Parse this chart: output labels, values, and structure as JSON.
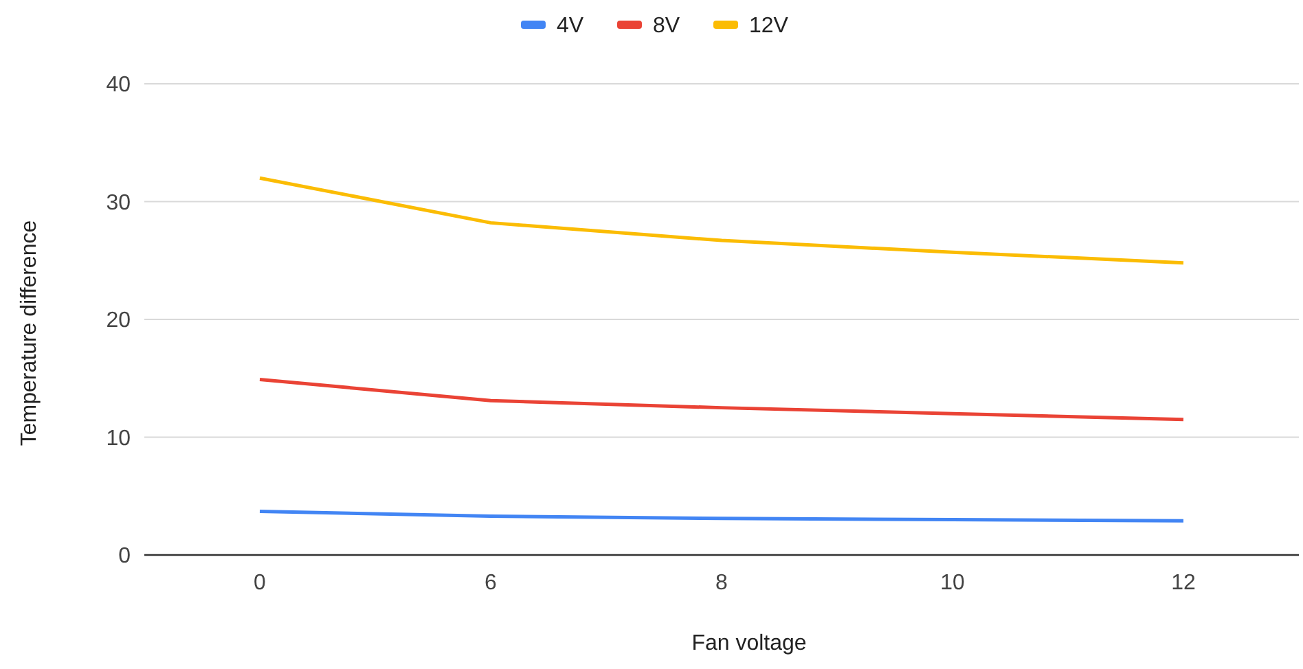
{
  "chart_data": {
    "type": "line",
    "xlabel": "Fan voltage",
    "ylabel": "Temperature difference",
    "categories": [
      "0",
      "6",
      "8",
      "10",
      "12"
    ],
    "series": [
      {
        "name": "4V",
        "color": "#4285f4",
        "values": [
          3.7,
          3.3,
          3.1,
          3.0,
          2.9
        ]
      },
      {
        "name": "8V",
        "color": "#ea4335",
        "values": [
          14.9,
          13.1,
          12.5,
          12.0,
          11.5
        ]
      },
      {
        "name": "12V",
        "color": "#fbbc04",
        "values": [
          32.0,
          28.2,
          26.7,
          25.7,
          24.8
        ]
      }
    ],
    "ylim": [
      0,
      40
    ],
    "yticks": [
      0,
      10,
      20,
      30,
      40
    ],
    "grid": "y",
    "legend": "top",
    "marker": "none",
    "line_style": "solid"
  }
}
